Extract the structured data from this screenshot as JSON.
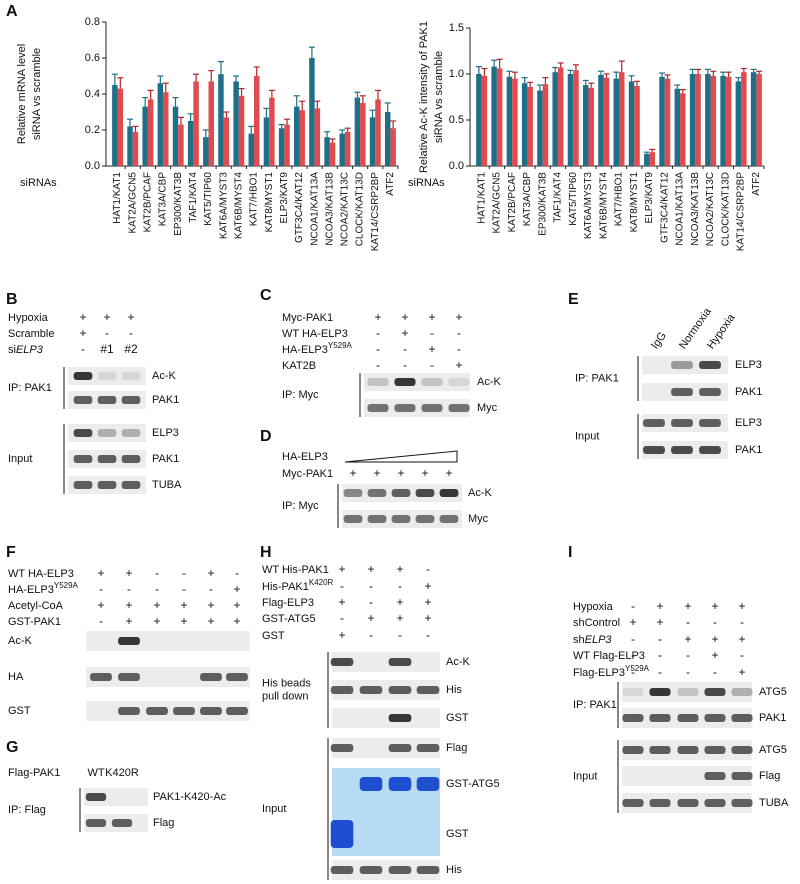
{
  "panel_a": {
    "letter": "A"
  },
  "chart_data": [
    {
      "type": "bar",
      "ylabel": [
        "Relative mRNA level",
        "siRNA vs scramble"
      ],
      "xlabel": "siRNAs",
      "categories": [
        "HAT1/KAT1",
        "KAT2A/GCN5",
        "KAT2B/PCAF",
        "KAT3A/CBP",
        "EP300/KAT3B",
        "TAF1/KAT4",
        "KAT5/TIP60",
        "KAT6A/MYST3",
        "KAT6B/MYST4",
        "KAT7/HBO1",
        "KAT8/MYST1",
        "ELP3/KAT9",
        "GTF3C4/KAT12",
        "NCOA1/KAT13A",
        "NCOA3/KAT13B",
        "NCOA2/KAT13C",
        "CLOCK/KAT13D",
        "KAT14/CSRP2BP",
        "ATF2"
      ],
      "series": [
        {
          "color": "#1f6f87",
          "values": [
            0.45,
            0.22,
            0.33,
            0.46,
            0.33,
            0.25,
            0.16,
            0.51,
            0.47,
            0.18,
            0.27,
            0.21,
            0.33,
            0.6,
            0.16,
            0.18,
            0.38,
            0.27,
            0.3
          ],
          "errors": [
            0.06,
            0.04,
            0.05,
            0.04,
            0.05,
            0.04,
            0.04,
            0.07,
            0.03,
            0.04,
            0.05,
            0.02,
            0.06,
            0.06,
            0.03,
            0.02,
            0.03,
            0.04,
            0.05
          ]
        },
        {
          "color": "#e04b50",
          "values": [
            0.43,
            0.19,
            0.37,
            0.41,
            0.23,
            0.47,
            0.47,
            0.27,
            0.39,
            0.5,
            0.38,
            0.23,
            0.31,
            0.32,
            0.13,
            0.19,
            0.35,
            0.37,
            0.21
          ],
          "errors": [
            0.06,
            0.03,
            0.05,
            0.05,
            0.04,
            0.04,
            0.06,
            0.03,
            0.04,
            0.05,
            0.04,
            0.03,
            0.05,
            0.04,
            0.02,
            0.02,
            0.04,
            0.05,
            0.04
          ]
        }
      ],
      "ylim": [
        0,
        0.8
      ],
      "yticks": [
        {
          "value": 0,
          "label": "0.0"
        },
        0.2,
        0.4,
        0.6,
        0.8
      ]
    },
    {
      "type": "bar",
      "ylabel": [
        "Relative Ac-K intensity of PAK1",
        "siRNA vs scramble"
      ],
      "xlabel": "siRNAs",
      "categories": [
        "HAT1/KAT1",
        "KAT2A/GCN5",
        "KAT2B/PCAF",
        "KAT3A/CBP",
        "EP300/KAT3B",
        "TAF1/KAT4",
        "KAT5/TIP60",
        "KAT6A/MYST3",
        "KAT6B/MYST4",
        "KAT7/HBO1",
        "KAT8/MYST1",
        "ELP3/KAT9",
        "GTF3C4/KAT12",
        "NCOA1/KAT13A",
        "NCOA3/KAT13B",
        "NCOA2/KAT13C",
        "CLOCK/KAT13D",
        "KAT14/CSRP2BP",
        "ATF2"
      ],
      "series": [
        {
          "color": "#1f6f87",
          "values": [
            1.0,
            1.08,
            0.97,
            0.9,
            0.82,
            1.02,
            1.0,
            0.88,
            0.99,
            0.95,
            0.92,
            0.13,
            0.97,
            0.84,
            1.0,
            1.0,
            0.98,
            0.92,
            1.02
          ],
          "errors": [
            0.08,
            0.07,
            0.06,
            0.06,
            0.06,
            0.05,
            0.04,
            0.05,
            0.04,
            0.07,
            0.06,
            0.02,
            0.04,
            0.04,
            0.05,
            0.05,
            0.04,
            0.04,
            0.03
          ]
        },
        {
          "color": "#e04b50",
          "values": [
            0.98,
            1.06,
            0.95,
            0.86,
            0.89,
            1.07,
            1.04,
            0.85,
            0.96,
            1.02,
            0.87,
            0.15,
            0.95,
            0.79,
            1.0,
            0.98,
            0.97,
            1.02,
            1.0
          ],
          "errors": [
            0.08,
            0.1,
            0.07,
            0.05,
            0.07,
            0.05,
            0.06,
            0.05,
            0.04,
            0.12,
            0.05,
            0.03,
            0.04,
            0.04,
            0.05,
            0.05,
            0.05,
            0.04,
            0.03
          ]
        }
      ],
      "ylim": [
        0,
        1.5
      ],
      "yticks": [
        {
          "value": 0,
          "label": "0.0"
        },
        0.5,
        {
          "value": 1,
          "label": "1.0"
        },
        1.5
      ]
    }
  ],
  "panels": [
    {
      "letter": "B",
      "conditions": [
        {
          "label": "Hypoxia",
          "signs": [
            "+",
            "+",
            "+"
          ]
        },
        {
          "label": "Scramble",
          "signs": [
            "+",
            "-",
            "-"
          ]
        },
        {
          "label": [
            "si",
            "ELP3"
          ],
          "format": "italic",
          "signs": [
            "-",
            "#1",
            "#2"
          ]
        }
      ],
      "groups": [
        {
          "label": "IP: PAK1",
          "bands": [
            "Ac-K",
            "PAK1"
          ]
        },
        {
          "label": "Input",
          "bands": [
            "ELP3",
            "PAK1",
            "TUBA"
          ]
        }
      ]
    },
    {
      "letter": "C",
      "conditions": [
        {
          "label": "Myc-PAK1",
          "signs": [
            "+",
            "+",
            "+",
            "+"
          ]
        },
        {
          "label": "WT HA-ELP3",
          "signs": [
            "-",
            "+",
            "-",
            "-"
          ]
        },
        {
          "label": [
            "HA-ELP3",
            "Y529A"
          ],
          "format": "sup",
          "signs": [
            "-",
            "-",
            "+",
            "-"
          ]
        },
        {
          "label": "KAT2B",
          "signs": [
            "-",
            "-",
            "-",
            "+"
          ]
        }
      ],
      "groups": [
        {
          "label": "IP: Myc",
          "bands": [
            "Ac-K",
            "Myc"
          ]
        }
      ]
    },
    {
      "letter": "D",
      "conditions": [
        {
          "label": "HA-ELP3",
          "ramp": true
        },
        {
          "label": "Myc-PAK1",
          "signs": [
            "+",
            "+",
            "+",
            "+",
            "+"
          ]
        }
      ],
      "groups": [
        {
          "label": "IP: Myc",
          "bands": [
            "Ac-K",
            "Myc"
          ]
        }
      ]
    },
    {
      "letter": "E",
      "lanes": [
        "IgG",
        "Normoxia",
        "Hypoxia"
      ],
      "groups": [
        {
          "label": "IP: PAK1",
          "bands": [
            "ELP3",
            "PAK1"
          ]
        },
        {
          "label": "Input",
          "bands": [
            "ELP3",
            "PAK1"
          ]
        }
      ]
    },
    {
      "letter": "F",
      "band_labels": "left",
      "conditions": [
        {
          "label": "WT HA-ELP3",
          "signs": [
            "+",
            "+",
            "-",
            "-",
            "+",
            "-"
          ]
        },
        {
          "label": [
            "HA-ELP3",
            "Y529A"
          ],
          "format": "sup",
          "signs": [
            "-",
            "-",
            "-",
            "-",
            "-",
            "+"
          ]
        },
        {
          "label": "Acetyl-CoA",
          "signs": [
            "+",
            "+",
            "+",
            "+",
            "+",
            "+"
          ]
        },
        {
          "label": "GST-PAK1",
          "signs": [
            "-",
            "+",
            "+",
            "+",
            "+",
            "+"
          ]
        }
      ],
      "groups": [
        {
          "bands": [
            "Ac-K",
            "HA",
            "GST"
          ]
        }
      ]
    },
    {
      "letter": "G",
      "lanes": [
        "WT",
        "K420R"
      ],
      "conditions": [
        {
          "label": "Flag-PAK1"
        }
      ],
      "groups": [
        {
          "label": "IP: Flag",
          "bands": [
            "PAK1-K420-Ac",
            "Flag"
          ]
        }
      ]
    },
    {
      "letter": "H",
      "conditions": [
        {
          "label": "WT His-PAK1",
          "signs": [
            "+",
            "+",
            "+",
            "-"
          ]
        },
        {
          "label": [
            "His-PAK1",
            "K420R"
          ],
          "format": "sup",
          "signs": [
            "-",
            "-",
            "-",
            "+"
          ]
        },
        {
          "label": "Flag-ELP3",
          "signs": [
            "+",
            "-",
            "+",
            "+"
          ]
        },
        {
          "label": "GST-ATG5",
          "signs": [
            "-",
            "+",
            "+",
            "+"
          ]
        },
        {
          "label": "GST",
          "signs": [
            "+",
            "-",
            "-",
            "-"
          ]
        }
      ],
      "groups": [
        {
          "label": [
            "His beads",
            "pull down"
          ],
          "bands": [
            "Ac-K",
            "His",
            "GST"
          ]
        },
        {
          "label": "Input",
          "bands": [
            "Flag",
            {
              "labels": [
                "GST-ATG5",
                "GST"
              ]
            },
            "His"
          ]
        }
      ]
    },
    {
      "letter": "I",
      "conditions": [
        {
          "label": "Hypoxia",
          "signs": [
            "-",
            "+",
            "+",
            "+",
            "+"
          ]
        },
        {
          "label": "shControl",
          "signs": [
            "+",
            "+",
            "-",
            "-",
            "-"
          ]
        },
        {
          "label": [
            "sh",
            "ELP3"
          ],
          "format": "italic",
          "signs": [
            "-",
            "-",
            "+",
            "+",
            "+"
          ]
        },
        {
          "label": "WT Flag-ELP3",
          "signs": [
            "-",
            "-",
            "-",
            "+",
            "-"
          ]
        },
        {
          "label": [
            "Flag-ELP3",
            "Y529A"
          ],
          "format": "sup",
          "signs": [
            "-",
            "-",
            "-",
            "-",
            "+"
          ]
        }
      ],
      "groups": [
        {
          "label": "IP: PAK1",
          "bands": [
            "ATG5",
            "PAK1"
          ]
        },
        {
          "label": "Input",
          "bands": [
            "ATG5",
            "Flag",
            "TUBA"
          ]
        }
      ]
    }
  ]
}
